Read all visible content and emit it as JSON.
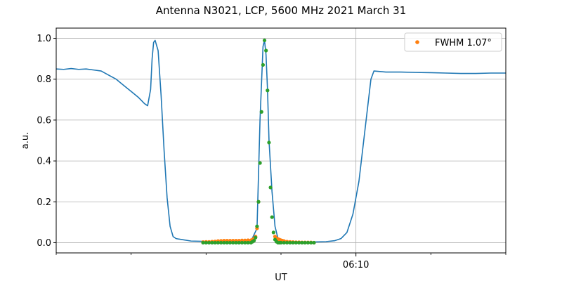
{
  "chart_data": {
    "type": "line",
    "title": "Antenna N3021, LCP, 5600 MHz 2021 March 31",
    "xlabel": "UT",
    "ylabel": "a.u.",
    "x_units": "minutes after 06:00 UT",
    "xlim": [
      0.0,
      15.0
    ],
    "ylim": [
      -0.05,
      1.05
    ],
    "x_ticks": [
      {
        "x": 10.0,
        "label": "06:10"
      }
    ],
    "y_ticks": [
      {
        "y": 0.0,
        "label": "0.0"
      },
      {
        "y": 0.2,
        "label": "0.2"
      },
      {
        "y": 0.4,
        "label": "0.4"
      },
      {
        "y": 0.6,
        "label": "0.6"
      },
      {
        "y": 0.8,
        "label": "0.8"
      },
      {
        "y": 1.0,
        "label": "1.0"
      }
    ],
    "grid": true,
    "legend_placement": "top-right",
    "colors": {
      "line": "#1f77b4",
      "fit": "#ff7f0e",
      "data": "#2ca02c"
    },
    "series": [
      {
        "kind": "line",
        "color": "#1f77b4",
        "x": [
          0.0,
          0.25,
          0.5,
          0.75,
          1.0,
          1.25,
          1.5,
          1.75,
          2.0,
          2.25,
          2.5,
          2.75,
          2.95,
          3.05,
          3.15,
          3.2,
          3.25,
          3.3,
          3.4,
          3.5,
          3.6,
          3.7,
          3.8,
          3.9,
          4.0,
          4.2,
          4.5,
          5.0,
          5.5,
          6.0,
          6.5,
          6.7,
          6.8,
          6.9,
          6.95,
          7.0,
          7.05,
          7.1,
          7.2,
          7.3,
          7.4,
          7.5,
          8.0,
          8.5,
          9.0,
          9.3,
          9.5,
          9.7,
          9.9,
          10.1,
          10.3,
          10.5,
          10.6,
          11.0,
          11.5,
          12.0,
          12.5,
          13.0,
          13.5,
          14.0,
          14.5,
          15.0
        ],
        "y": [
          0.85,
          0.848,
          0.852,
          0.848,
          0.85,
          0.845,
          0.84,
          0.82,
          0.8,
          0.77,
          0.74,
          0.71,
          0.68,
          0.67,
          0.75,
          0.9,
          0.98,
          0.99,
          0.94,
          0.72,
          0.45,
          0.22,
          0.08,
          0.03,
          0.02,
          0.015,
          0.008,
          0.006,
          0.005,
          0.005,
          0.008,
          0.07,
          0.6,
          0.96,
          0.99,
          0.92,
          0.75,
          0.5,
          0.25,
          0.08,
          0.02,
          0.008,
          0.005,
          0.003,
          0.005,
          0.01,
          0.02,
          0.05,
          0.14,
          0.3,
          0.55,
          0.8,
          0.84,
          0.835,
          0.835,
          0.833,
          0.832,
          0.83,
          0.828,
          0.828,
          0.83,
          0.83
        ]
      },
      {
        "kind": "points",
        "name": "FWHM 1.07°",
        "color": "#ff7f0e",
        "x": [
          4.9,
          5.0,
          5.1,
          5.2,
          5.3,
          5.4,
          5.5,
          5.6,
          5.7,
          5.8,
          5.9,
          6.0,
          6.1,
          6.2,
          6.3,
          6.4,
          6.5,
          6.55,
          6.6,
          6.65,
          6.7,
          6.75,
          7.3,
          7.35,
          7.4,
          7.45,
          7.5,
          7.55,
          7.6,
          7.7,
          7.8,
          7.9,
          8.0,
          8.1,
          8.2,
          8.3,
          8.4,
          8.5,
          8.6
        ],
        "y": [
          0.003,
          0.004,
          0.004,
          0.005,
          0.006,
          0.008,
          0.009,
          0.01,
          0.01,
          0.01,
          0.01,
          0.01,
          0.01,
          0.011,
          0.011,
          0.012,
          0.012,
          0.015,
          0.02,
          0.03,
          0.07,
          0.2,
          0.03,
          0.022,
          0.018,
          0.015,
          0.012,
          0.01,
          0.008,
          0.005,
          0.004,
          0.003,
          0.002,
          0.002,
          0.001,
          0.001,
          0.001,
          0.001,
          0.0
        ]
      },
      {
        "kind": "points",
        "color": "#2ca02c",
        "x": [
          4.9,
          5.0,
          5.1,
          5.2,
          5.3,
          5.4,
          5.5,
          5.6,
          5.7,
          5.8,
          5.9,
          6.0,
          6.1,
          6.2,
          6.3,
          6.4,
          6.5,
          6.55,
          6.6,
          6.65,
          6.7,
          6.75,
          6.8,
          6.85,
          6.9,
          6.95,
          7.0,
          7.05,
          7.1,
          7.15,
          7.2,
          7.25,
          7.3,
          7.35,
          7.4,
          7.45,
          7.5,
          7.6,
          7.7,
          7.8,
          7.9,
          8.0,
          8.1,
          8.2,
          8.3,
          8.4,
          8.5,
          8.6
        ],
        "y": [
          0.0,
          0.0,
          0.0,
          0.0,
          0.0,
          0.0,
          0.0,
          0.0,
          0.0,
          0.0,
          0.0,
          0.0,
          0.0,
          0.0,
          0.0,
          0.0,
          0.0,
          0.005,
          0.01,
          0.025,
          0.08,
          0.2,
          0.39,
          0.64,
          0.87,
          0.99,
          0.94,
          0.745,
          0.49,
          0.27,
          0.125,
          0.05,
          0.015,
          0.005,
          0.0,
          0.0,
          0.0,
          0.0,
          0.0,
          0.0,
          0.0,
          0.0,
          0.0,
          0.0,
          0.0,
          0.0,
          0.0,
          0.0
        ]
      }
    ]
  }
}
